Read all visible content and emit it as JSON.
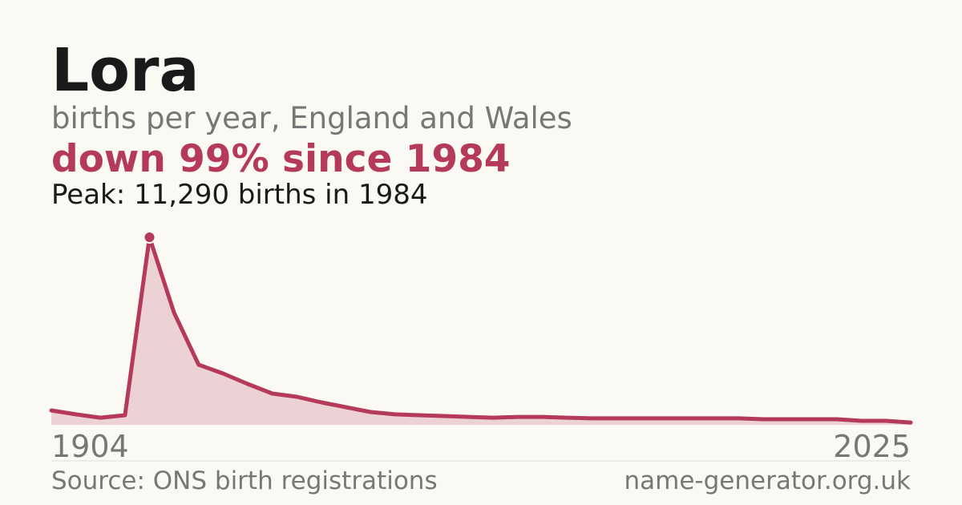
{
  "chart_data": {
    "type": "area",
    "title": "Lora",
    "subtitle": "births per year, England and Wales",
    "headline": "down 99% since 1984",
    "annotation": "Peak: 11,290 births in 1984",
    "source": "Source: ONS birth registrations",
    "site": "name-generator.org.uk",
    "categories": [
      "1904",
      null,
      null,
      null,
      null,
      null,
      null,
      null,
      null,
      null,
      null,
      null,
      null,
      null,
      null,
      null,
      null,
      null,
      null,
      null,
      null,
      null,
      null,
      null,
      null,
      null,
      null,
      null,
      null,
      null,
      null,
      null,
      null,
      null,
      null,
      "2025"
    ],
    "values": [
      870,
      630,
      430,
      580,
      11290,
      6750,
      3620,
      3090,
      2460,
      1880,
      1690,
      1350,
      1060,
      770,
      630,
      580,
      530,
      480,
      430,
      480,
      480,
      430,
      390,
      390,
      390,
      390,
      390,
      390,
      390,
      340,
      340,
      340,
      340,
      240,
      240,
      140
    ],
    "peak_index": 4,
    "color": "#b5395a",
    "ylim": [
      0,
      11290
    ]
  }
}
